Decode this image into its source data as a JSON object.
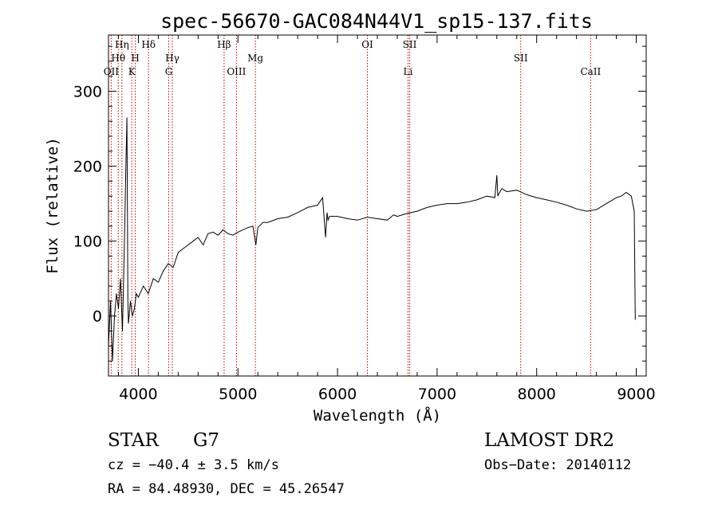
{
  "title": "spec-56670-GAC084N44V1_sp15-137.fits",
  "chart_data": {
    "type": "line",
    "title": "spec-56670-GAC084N44V1_sp15-137.fits",
    "xlabel": "Wavelength (Å)",
    "ylabel": "Flux (relative)",
    "xlim": [
      3700,
      9100
    ],
    "ylim": [
      -80,
      375
    ],
    "x_ticks": [
      4000,
      5000,
      6000,
      7000,
      8000,
      9000
    ],
    "y_ticks": [
      0,
      100,
      200,
      300
    ],
    "grid": false,
    "series": [
      {
        "x": [
          3700,
          3720,
          3740,
          3760,
          3780,
          3800,
          3820,
          3840,
          3860,
          3875,
          3885,
          3890,
          3895,
          3900,
          3920,
          3940,
          3960,
          3980,
          4000,
          4050,
          4100,
          4150,
          4200,
          4250,
          4300,
          4350,
          4400,
          4450,
          4500,
          4550,
          4600,
          4650,
          4700,
          4750,
          4800,
          4850,
          4900,
          4950,
          5000,
          5050,
          5100,
          5150,
          5180,
          5200,
          5250,
          5300,
          5400,
          5500,
          5600,
          5700,
          5800,
          5850,
          5880,
          5895,
          5905,
          5920,
          6000,
          6100,
          6200,
          6300,
          6400,
          6500,
          6563,
          6600,
          6700,
          6800,
          6900,
          7000,
          7100,
          7200,
          7300,
          7400,
          7500,
          7580,
          7600,
          7610,
          7620,
          7650,
          7700,
          7800,
          7900,
          8000,
          8100,
          8200,
          8300,
          8400,
          8500,
          8600,
          8700,
          8800,
          8850,
          8900,
          8950,
          8980,
          8990
        ],
        "y": [
          -40,
          20,
          -60,
          0,
          30,
          10,
          50,
          -20,
          100,
          200,
          265,
          150,
          20,
          -10,
          20,
          0,
          10,
          30,
          25,
          40,
          30,
          50,
          45,
          60,
          70,
          65,
          85,
          90,
          95,
          100,
          105,
          95,
          110,
          112,
          108,
          115,
          110,
          108,
          112,
          115,
          118,
          120,
          95,
          118,
          125,
          125,
          130,
          132,
          138,
          145,
          148,
          158,
          105,
          138,
          128,
          133,
          133,
          130,
          128,
          132,
          130,
          128,
          135,
          133,
          137,
          140,
          145,
          148,
          150,
          150,
          152,
          155,
          160,
          158,
          188,
          160,
          163,
          170,
          166,
          168,
          162,
          158,
          155,
          152,
          148,
          143,
          140,
          142,
          150,
          158,
          160,
          165,
          160,
          140,
          -5
        ]
      }
    ],
    "line_ids": [
      {
        "label": "Hη",
        "x": 3835,
        "row": 0
      },
      {
        "label": "Hθ",
        "x": 3798,
        "row": 1
      },
      {
        "label": "OII",
        "x": 3727,
        "row": 2
      },
      {
        "label": "H",
        "x": 3969,
        "row": 1
      },
      {
        "label": "K",
        "x": 3934,
        "row": 2
      },
      {
        "label": "Hδ",
        "x": 4102,
        "row": 0
      },
      {
        "label": "Hγ",
        "x": 4341,
        "row": 1
      },
      {
        "label": "G",
        "x": 4305,
        "row": 2
      },
      {
        "label": "Hβ",
        "x": 4861,
        "row": 0
      },
      {
        "label": "OIII",
        "x": 4985,
        "row": 2
      },
      {
        "label": "Mg",
        "x": 5175,
        "row": 1
      },
      {
        "label": "OI",
        "x": 6300,
        "row": 0
      },
      {
        "label": "SII",
        "x": 6725,
        "row": 0
      },
      {
        "label": "Li",
        "x": 6708,
        "row": 2
      },
      {
        "label": "SII",
        "x": 7840,
        "row": 1
      },
      {
        "label": "CaII",
        "x": 8542,
        "row": 2
      }
    ]
  },
  "footer": {
    "object_class": "STAR",
    "subclass": "G7",
    "survey": "LAMOST DR2",
    "cz": "cz = −40.4 ± 3.5 km/s",
    "obs_date": "Obs−Date: 20140112",
    "coords": "RA =  84.48930, DEC =  45.26547"
  },
  "colors": {
    "spectrum": "#000000",
    "line_marker": "#c00000",
    "axes": "#000000",
    "background": "#ffffff"
  }
}
